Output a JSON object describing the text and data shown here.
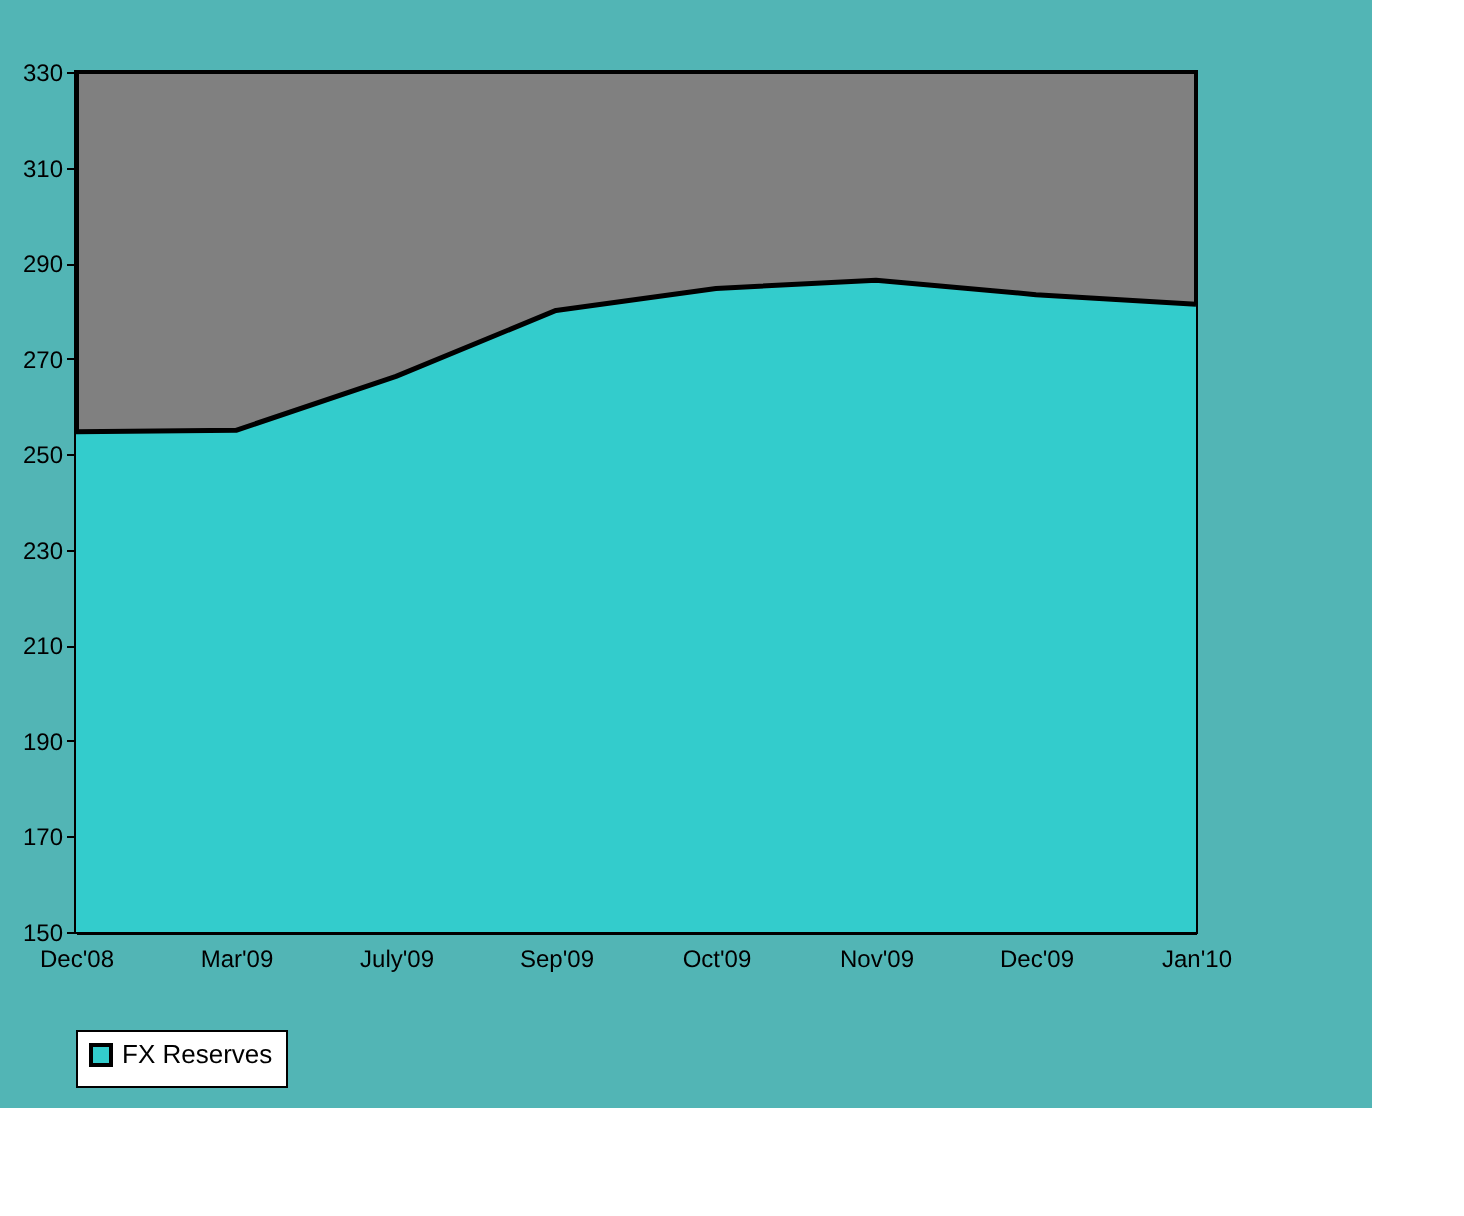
{
  "chart_data": {
    "type": "area",
    "categories": [
      "Dec'08",
      "Mar'09",
      "July'09",
      "Sep'09",
      "Oct'09",
      "Nov'09",
      "Dec'09",
      "Jan'10"
    ],
    "series": [
      {
        "name": "FX Reserves",
        "color": "#33cccc",
        "values": [
          254.7,
          255,
          266.3,
          280.1,
          284.7,
          286.4,
          283.4,
          281.4
        ]
      }
    ],
    "ylim": [
      150,
      330
    ],
    "yticks": [
      150,
      170,
      190,
      210,
      230,
      250,
      270,
      290,
      310,
      330
    ],
    "grid": false,
    "legend": "bottom"
  }
}
